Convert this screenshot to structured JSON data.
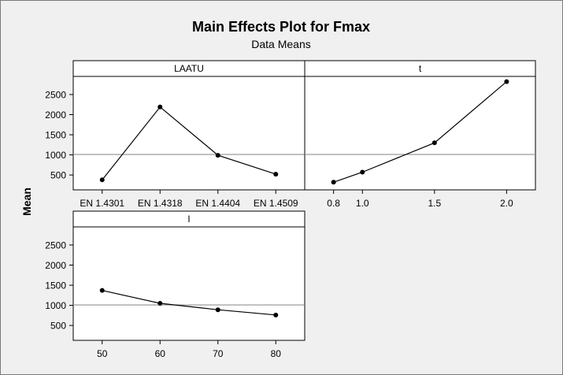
{
  "chart_data": {
    "type": "line",
    "title": "Main Effects Plot for Fmax",
    "subtitle": "Data Means",
    "ylabel": "Mean",
    "ylim": [
      130,
      2950
    ],
    "y_ticks": [
      500,
      1000,
      1500,
      2000,
      2500
    ],
    "grand_mean": 1010,
    "colors": {
      "background": "#f0f0f0",
      "panel": "#ffffff",
      "strip": "#ffffff",
      "line": "#000000",
      "reference_line": "#909090"
    },
    "panels": [
      {
        "name": "LAATU",
        "x_type": "categorical",
        "categories": [
          "EN 1.4301",
          "EN 1.4318",
          "EN 1.4404",
          "EN 1.4509"
        ],
        "values": [
          380,
          2190,
          990,
          520
        ]
      },
      {
        "name": "t",
        "x_type": "numeric",
        "x": [
          0.8,
          1.0,
          1.5,
          2.0
        ],
        "x_ticks": [
          "0.8",
          "1.0",
          "1.5",
          "2.0"
        ],
        "values": [
          320,
          570,
          1300,
          2820
        ]
      },
      {
        "name": "l",
        "x_type": "numeric",
        "x": [
          50,
          60,
          70,
          80
        ],
        "x_ticks": [
          "50",
          "60",
          "70",
          "80"
        ],
        "values": [
          1370,
          1050,
          890,
          760
        ]
      }
    ]
  }
}
